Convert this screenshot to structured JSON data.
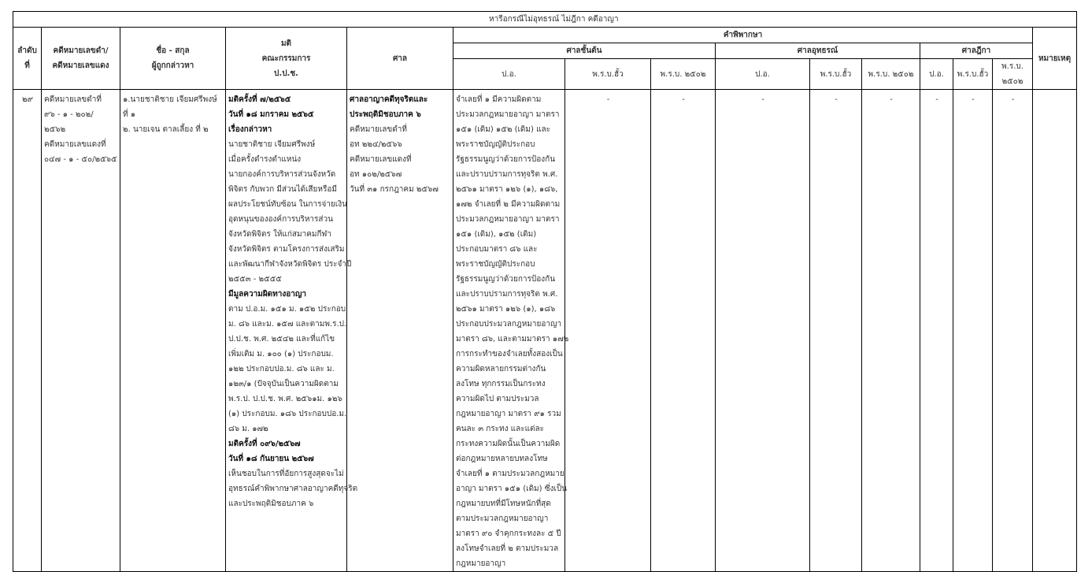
{
  "title": "หารือกรณีไม่อุทธรณ์ ไม่ฎีกา คดีอาญา",
  "headers": {
    "no": [
      "ลำดับ",
      "ที่"
    ],
    "case_no": [
      "คดีหมายเลขดำ/",
      "คดีหมายเลขแดง"
    ],
    "name": [
      "ชื่อ - สกุล",
      "ผู้ถูกกล่าวหา"
    ],
    "resolution": [
      "มติ",
      "คณะกรรมการ",
      "ป.ป.ช."
    ],
    "court": "ศาล",
    "judgment": "คำพิพากษา",
    "first_instance": "ศาลชั้นต้น",
    "appeal": "ศาลอุทธรณ์",
    "supreme": "ศาลฎีกา",
    "remarks": "หมายเหตุ",
    "sub": [
      "ป.อ.",
      "พ.ร.บ.ฮั้ว",
      "พ.ร.บ. ๒๕๐๒",
      "ป.อ.",
      "พ.ร.บ.ฮั้ว",
      "พ.ร.บ. ๒๕๐๒",
      "ป.อ.",
      "พ.ร.บ.ฮั้ว",
      "พ.ร.บ. ๒๕๐๒"
    ]
  },
  "row": {
    "no": "๒๙",
    "case_no": [
      "คดีหมายเลขดำที่",
      "๙๖ - ๑ - ๒๐๒/",
      "๒๕๖๒",
      "คดีหมายเลขแดงที่",
      "๐๔๗ - ๑ - ๕๐/๒๕๖๕"
    ],
    "name": [
      "๑.นายชาติชาย  เจียมศรีพงษ์",
      "ที่ ๑",
      "๒. นายเจน ตาลเลี้ยง ที่  ๒"
    ],
    "resolution": [
      {
        "t": "มติครั้งที่ ๗/๒๕๖๕",
        "b": true
      },
      {
        "t": "วันที่ ๑๘ มกราคม ๒๕๖๕",
        "b": true
      },
      {
        "t": "เรื่องกล่าวหา",
        "b": true
      },
      {
        "t": "นายชาติชาย  เจียมศรีพงษ์"
      },
      {
        "t": "เมื่อครั้งดำรงตำแหน่ง"
      },
      {
        "t": "นายกองค์การบริหารส่วนจังหวัด"
      },
      {
        "t": "พิจิตร กับพวก มีส่วนได้เสียหรือมี"
      },
      {
        "t": "ผลประโยชน์ทับซ้อน ในการจ่ายเงิน"
      },
      {
        "t": "อุดหนุนขององค์การบริหารส่วน"
      },
      {
        "t": "จังหวัดพิจิตร ให้แก่สมาคมกีฬา"
      },
      {
        "t": "จังหวัดพิจิตร ตามโครงการส่งเสริม"
      },
      {
        "t": "และพัฒนากีฬาจังหวัดพิจิตร ประจำปี"
      },
      {
        "t": " ๒๕๕๓ - ๒๕๕๕"
      },
      {
        "t": "มีมูลความผิดทางอาญา",
        "b": true
      },
      {
        "t": "ตาม ป.อ.ม. ๑๕๑ ม. ๑๕๒ ประกอบ"
      },
      {
        "t": "ม. ๘๖ และม. ๑๕๗ และตามพ.ร.ป."
      },
      {
        "t": "ป.ป.ช. พ.ศ. ๒๕๔๒ และที่แก้ไข"
      },
      {
        "t": "เพิ่มเติม  ม. ๑๐๐ (๑) ประกอบม."
      },
      {
        "t": "๑๒๒ ประกอบปอ.ม.  ๘๖ และ ม."
      },
      {
        "t": "๑๒๓/๑ (ปัจจุบันเป็นความผิดตาม"
      },
      {
        "t": "พ.ร.ป. ป.ป.ช. พ.ศ. ๒๕๖๑ม. ๑๒๖"
      },
      {
        "t": "(๑) ประกอบม.  ๑๘๖ ประกอบปอ.ม."
      },
      {
        "t": " ๘๖ ม.  ๑๗๒"
      },
      {
        "t": "มติครั้งที่ ๐๙๖/๒๕๖๗",
        "b": true
      },
      {
        "t": "วันที่ ๑๘ กันยายน ๒๕๖๗",
        "b": true
      },
      {
        "t": "เห็นชอบในการที่อัยการสูงสุดจะไม่"
      },
      {
        "t": "อุทธรณ์คำพิพากษาศาลอาญาคดีทุจริต"
      },
      {
        "t": "และประพฤติมิชอบภาค ๖"
      }
    ],
    "court": [
      {
        "t": "ศาลอาญาคดีทุจริตและ",
        "b": true
      },
      {
        "t": "ประพฤติมิชอบภาค ๖",
        "b": true
      },
      {
        "t": "คดีหมายเลขดำที่"
      },
      {
        "t": "อท ๒๒๔/๒๕๖๖"
      },
      {
        "t": "คดีหมายเลขแดงที่"
      },
      {
        "t": "อท ๑๐๒/๒๕๖๗"
      },
      {
        "t": "วันที่ ๓๑ กรกฎาคม ๒๕๖๗"
      }
    ],
    "first_instance_criminal_code": [
      "จำเลยที่ ๑ มีความผิดตาม",
      "ประมวลกฎหมายอาญา มาตรา",
      "๑๕๑ (เดิม) ๑๕๒ (เดิม) และ",
      "พระราชบัญญัติประกอบ",
      "รัฐธรรมนูญว่าด้วยการป้องกัน",
      "และปราบปรามการทุจริต พ.ศ.",
      "๒๕๖๑ มาตรา ๑๒๖ (๑), ๑๘๖,",
      "๑๗๒ จำเลยที่ ๒ มีความผิดตาม",
      "ประมวลกฎหมายอาญา มาตรา",
      "๑๕๑ (เดิม), ๑๕๒ (เดิม)",
      "ประกอบมาตรา ๘๖ และ",
      "พระราชบัญญัติประกอบ",
      "รัฐธรรมนูญว่าด้วยการป้องกัน",
      "และปราบปรามการทุจริต พ.ศ.",
      "๒๕๖๑ มาตรา ๑๒๖ (๑), ๑๘๖",
      "ประกอบประมวลกฎหมายอาญา",
      "มาตรา ๘๖, และตามมาตรา ๑๗๒",
      " การกระทำของจำเลยทั้งสองเป็น",
      "ความผิดหลายกรรมต่างกัน",
      "ลงโทษ ทุกกรรมเป็นกระทง",
      "ความผิดไป ตามประมวล",
      "กฎหมายอาญา มาตรา ๙๑ รวม",
      "คนละ ๓ กระทง และแต่ละ",
      "กระทงความผิดนั้นเป็นความผิด",
      "ต่อกฎหมายหลายบทลงโทษ",
      "จำเลยที่ ๑ ตามประมวลกฎหมาย",
      "อาญา มาตรา ๑๕๑ (เดิม) ซึ่งเป็น",
      " กฎหมายบทที่มีโทษหนักที่สุด",
      "ตามประมวลกฎหมายอาญา",
      "มาตรา ๙๐ จำคุกกระทงละ ๕ ปี",
      "ลงโทษจำเลยที่ ๒ ตามประมวล",
      "กฎหมายอาญา"
    ],
    "dash": "-",
    "remarks": ""
  }
}
